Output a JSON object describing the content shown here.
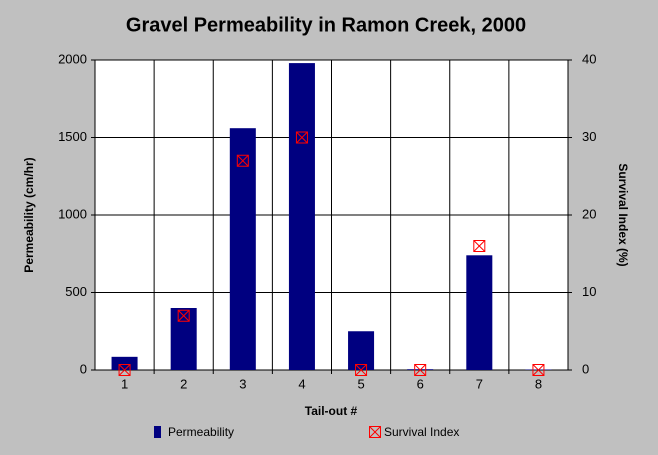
{
  "chart_data": {
    "type": "bar",
    "title": "Gravel Permeability in Ramon Creek, 2000",
    "x_label": "Tail-out #",
    "y_label": "Permeability (cm/hr)",
    "y2_label": "Survival Index (%)",
    "categories": [
      "1",
      "2",
      "3",
      "4",
      "5",
      "6",
      "7",
      "8"
    ],
    "series": [
      {
        "name": "Permeability",
        "color": "#000080",
        "kind": "bar",
        "values": [
          85,
          400,
          1560,
          1980,
          250,
          5,
          740,
          3
        ]
      },
      {
        "name": "Survival Index",
        "color": "#ff0000",
        "kind": "marker",
        "axis": "y2",
        "values": [
          0,
          7,
          27,
          30,
          0,
          0,
          16,
          0
        ]
      }
    ],
    "ylim": [
      0,
      2000
    ],
    "yticks": [
      0,
      500,
      1000,
      1500,
      2000
    ],
    "y2lim": [
      0,
      40
    ],
    "y2ticks": [
      0,
      10,
      20,
      30,
      40
    ],
    "grid": true,
    "legend": "bottom"
  }
}
